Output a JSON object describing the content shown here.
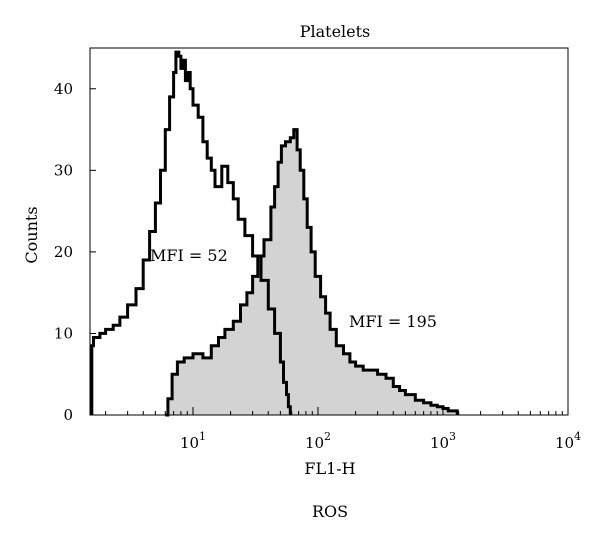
{
  "chart_data": {
    "type": "area",
    "title": "Platelets",
    "xlabel": "FL1-H",
    "ylabel": "Counts",
    "caption": "ROS",
    "x_scale": "log",
    "xlim": [
      1.5,
      10000
    ],
    "ylim": [
      0,
      45
    ],
    "x_ticks": [
      {
        "value": 10,
        "base": "10",
        "exp": "1"
      },
      {
        "value": 100,
        "base": "10",
        "exp": "2"
      },
      {
        "value": 1000,
        "base": "10",
        "exp": "3"
      },
      {
        "value": 10000,
        "base": "10",
        "exp": "4"
      }
    ],
    "y_ticks": [
      0,
      10,
      20,
      30,
      40
    ],
    "grid": false,
    "series": [
      {
        "style": "outline",
        "color": "#000000",
        "x": [
          1.55,
          1.6,
          1.8,
          2.0,
          2.3,
          2.6,
          3.0,
          3.5,
          4.0,
          4.5,
          5.0,
          5.5,
          6.0,
          6.5,
          7.0,
          7.3,
          7.7,
          8.0,
          8.3,
          8.7,
          9.0,
          9.5,
          10.0,
          11.0,
          12.0,
          13.0,
          14.0,
          15.0,
          17.0,
          19.0,
          21.0,
          23.0,
          26.0,
          30.0,
          35.0,
          40.0,
          45.0,
          50.0,
          53.0,
          56.0,
          58.0,
          60.0,
          60.5
        ],
        "y": [
          8.5,
          9.5,
          10.0,
          10.5,
          11.0,
          12.0,
          13.5,
          15.5,
          19.0,
          22.5,
          26.0,
          30.0,
          35.0,
          39.0,
          42.0,
          44.5,
          44.0,
          42.5,
          43.5,
          41.0,
          42.0,
          40.0,
          38.0,
          36.5,
          33.5,
          31.5,
          30.0,
          28.0,
          30.5,
          28.5,
          26.5,
          24.0,
          22.0,
          19.5,
          16.5,
          13.0,
          10.0,
          6.5,
          4.0,
          2.5,
          1.0,
          0.3,
          0.0
        ],
        "annotation": "MFI = 52"
      },
      {
        "style": "filled",
        "color": "#000000",
        "fill": "#d3d3d3",
        "x": [
          6.0,
          6.3,
          6.8,
          7.5,
          8.5,
          10.0,
          12.0,
          14.0,
          16.0,
          18.0,
          21.0,
          24.0,
          27.0,
          30.0,
          33.0,
          37.0,
          42.0,
          45.0,
          48.0,
          51.0,
          55.0,
          60.0,
          64.0,
          68.0,
          72.0,
          77.0,
          82.0,
          88.0,
          95.0,
          105.0,
          115.0,
          125.0,
          140.0,
          160.0,
          180.0,
          200.0,
          230.0,
          260.0,
          300.0,
          350.0,
          400.0,
          450.0,
          500.0,
          600.0,
          700.0,
          800.0,
          900.0,
          1000.0,
          1100.0,
          1200.0,
          1300.0,
          1310.0
        ],
        "y": [
          0.0,
          2.0,
          5.0,
          6.5,
          7.0,
          7.5,
          7.0,
          8.5,
          9.5,
          10.5,
          11.5,
          13.5,
          15.0,
          17.0,
          19.5,
          21.5,
          25.5,
          28.0,
          31.0,
          33.0,
          33.5,
          34.0,
          35.0,
          32.5,
          30.0,
          26.5,
          23.0,
          20.0,
          17.0,
          14.5,
          12.5,
          10.5,
          8.5,
          7.5,
          6.5,
          6.0,
          5.5,
          5.5,
          5.0,
          4.5,
          3.5,
          3.0,
          2.5,
          1.8,
          1.5,
          1.2,
          1.0,
          0.8,
          0.5,
          0.5,
          0.3,
          0.0
        ],
        "annotation": "MFI = 195"
      }
    ]
  }
}
